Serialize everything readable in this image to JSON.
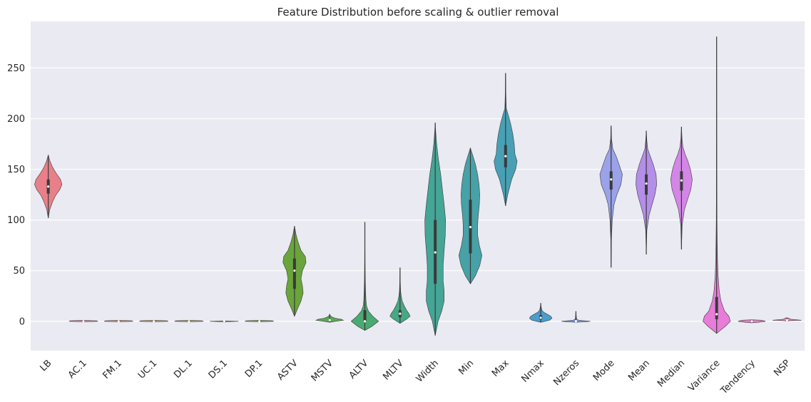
{
  "chart_data": {
    "type": "violin",
    "title": "Feature Distribution before scaling & outlier removal",
    "xlabel": "",
    "ylabel": "",
    "ylim": [
      -29,
      296
    ],
    "yticks": [
      0,
      50,
      100,
      150,
      200,
      250
    ],
    "grid": true,
    "legend": "none",
    "background": "#eaeaf2",
    "series": [
      {
        "name": "LB",
        "color": "#e88089",
        "min": 102,
        "max": 164,
        "q1": 126,
        "median": 133,
        "q3": 140,
        "shape": [
          [
            102,
            0
          ],
          [
            110,
            0.1
          ],
          [
            118,
            0.3
          ],
          [
            124,
            0.5
          ],
          [
            130,
            0.8
          ],
          [
            135,
            0.95
          ],
          [
            140,
            0.85
          ],
          [
            146,
            0.55
          ],
          [
            152,
            0.3
          ],
          [
            158,
            0.12
          ],
          [
            164,
            0
          ]
        ]
      },
      {
        "name": "AC.1",
        "color": "#e8849a",
        "min": -0.5,
        "max": 1,
        "q1": 0,
        "median": 0,
        "q3": 0.2,
        "shape": [
          [
            -0.5,
            0
          ],
          [
            0,
            1
          ],
          [
            0.5,
            0.9
          ],
          [
            1,
            0
          ]
        ]
      },
      {
        "name": "FM.1",
        "color": "#df9170",
        "min": -0.5,
        "max": 1,
        "q1": 0,
        "median": 0,
        "q3": 0.2,
        "shape": [
          [
            -0.5,
            0
          ],
          [
            0,
            1
          ],
          [
            0.5,
            0.9
          ],
          [
            1,
            0
          ]
        ]
      },
      {
        "name": "UC.1",
        "color": "#c99c5c",
        "min": -0.5,
        "max": 1,
        "q1": 0,
        "median": 0,
        "q3": 0.2,
        "shape": [
          [
            -0.5,
            0
          ],
          [
            0,
            1
          ],
          [
            0.5,
            0.9
          ],
          [
            1,
            0
          ]
        ]
      },
      {
        "name": "DL.1",
        "color": "#b3a457",
        "min": -0.5,
        "max": 1,
        "q1": 0,
        "median": 0,
        "q3": 0.2,
        "shape": [
          [
            -0.5,
            0
          ],
          [
            0,
            1
          ],
          [
            0.5,
            0.9
          ],
          [
            1,
            0
          ]
        ]
      },
      {
        "name": "DS.1",
        "color": "#98ac55",
        "min": -0.5,
        "max": 0.5,
        "q1": 0,
        "median": 0,
        "q3": 0.1,
        "shape": [
          [
            -0.5,
            0
          ],
          [
            0,
            1
          ],
          [
            0.5,
            0
          ]
        ]
      },
      {
        "name": "DP.1",
        "color": "#7db050",
        "min": -0.5,
        "max": 1,
        "q1": 0,
        "median": 0,
        "q3": 0.2,
        "shape": [
          [
            -0.5,
            0
          ],
          [
            0,
            1
          ],
          [
            0.5,
            0.9
          ],
          [
            1,
            0
          ]
        ]
      },
      {
        "name": "ASTV",
        "color": "#69a53b",
        "min": 5,
        "max": 94,
        "q1": 32,
        "median": 50,
        "q3": 62,
        "shape": [
          [
            5,
            0
          ],
          [
            12,
            0.2
          ],
          [
            20,
            0.45
          ],
          [
            28,
            0.6
          ],
          [
            35,
            0.55
          ],
          [
            42,
            0.45
          ],
          [
            50,
            0.55
          ],
          [
            58,
            0.8
          ],
          [
            64,
            0.75
          ],
          [
            70,
            0.45
          ],
          [
            78,
            0.25
          ],
          [
            86,
            0.1
          ],
          [
            94,
            0
          ]
        ]
      },
      {
        "name": "MSTV",
        "color": "#5ca858",
        "min": -1,
        "max": 7,
        "q1": 0.7,
        "median": 1.2,
        "q3": 1.7,
        "shape": [
          [
            -1,
            0
          ],
          [
            0,
            0.4
          ],
          [
            1,
            0.95
          ],
          [
            2,
            0.8
          ],
          [
            3,
            0.4
          ],
          [
            4,
            0.2
          ],
          [
            5,
            0.08
          ],
          [
            6,
            0.03
          ],
          [
            7,
            0
          ]
        ]
      },
      {
        "name": "ALTV",
        "color": "#4aaa72",
        "min": -9,
        "max": 98,
        "q1": 0,
        "median": 0,
        "q3": 11,
        "shape": [
          [
            -9,
            0
          ],
          [
            -5,
            0.5
          ],
          [
            0,
            0.95
          ],
          [
            5,
            0.55
          ],
          [
            10,
            0.25
          ],
          [
            15,
            0.12
          ],
          [
            20,
            0.08
          ],
          [
            30,
            0.05
          ],
          [
            40,
            0.03
          ],
          [
            60,
            0.015
          ],
          [
            80,
            0.008
          ],
          [
            98,
            0
          ]
        ]
      },
      {
        "name": "MLTV",
        "color": "#47a884",
        "min": -2,
        "max": 53,
        "q1": 4,
        "median": 7.5,
        "q3": 11,
        "shape": [
          [
            -2,
            0
          ],
          [
            2,
            0.45
          ],
          [
            5,
            0.7
          ],
          [
            8,
            0.6
          ],
          [
            11,
            0.45
          ],
          [
            15,
            0.3
          ],
          [
            20,
            0.15
          ],
          [
            25,
            0.08
          ],
          [
            30,
            0.04
          ],
          [
            40,
            0.015
          ],
          [
            53,
            0
          ]
        ]
      },
      {
        "name": "Width",
        "color": "#45a596",
        "min": -14,
        "max": 196,
        "q1": 37,
        "median": 68,
        "q3": 100,
        "shape": [
          [
            -14,
            0
          ],
          [
            0,
            0.2
          ],
          [
            10,
            0.45
          ],
          [
            20,
            0.62
          ],
          [
            30,
            0.62
          ],
          [
            40,
            0.55
          ],
          [
            55,
            0.55
          ],
          [
            70,
            0.62
          ],
          [
            85,
            0.7
          ],
          [
            100,
            0.72
          ],
          [
            115,
            0.62
          ],
          [
            130,
            0.5
          ],
          [
            145,
            0.38
          ],
          [
            160,
            0.22
          ],
          [
            175,
            0.1
          ],
          [
            186,
            0.04
          ],
          [
            196,
            0
          ]
        ]
      },
      {
        "name": "Min",
        "color": "#46a2a7",
        "min": 37,
        "max": 171,
        "q1": 67,
        "median": 93,
        "q3": 120,
        "shape": [
          [
            37,
            0
          ],
          [
            45,
            0.35
          ],
          [
            55,
            0.65
          ],
          [
            65,
            0.8
          ],
          [
            75,
            0.62
          ],
          [
            85,
            0.5
          ],
          [
            95,
            0.5
          ],
          [
            105,
            0.55
          ],
          [
            115,
            0.62
          ],
          [
            125,
            0.65
          ],
          [
            135,
            0.6
          ],
          [
            145,
            0.5
          ],
          [
            155,
            0.35
          ],
          [
            163,
            0.18
          ],
          [
            171,
            0
          ]
        ]
      },
      {
        "name": "Max",
        "color": "#48a0b5",
        "min": 114,
        "max": 245,
        "q1": 152,
        "median": 163,
        "q3": 174,
        "shape": [
          [
            114,
            0
          ],
          [
            125,
            0.15
          ],
          [
            140,
            0.42
          ],
          [
            150,
            0.7
          ],
          [
            158,
            0.8
          ],
          [
            165,
            0.65
          ],
          [
            175,
            0.6
          ],
          [
            185,
            0.5
          ],
          [
            195,
            0.35
          ],
          [
            203,
            0.2
          ],
          [
            210,
            0.05
          ],
          [
            225,
            0.02
          ],
          [
            245,
            0
          ]
        ]
      },
      {
        "name": "Nmax",
        "color": "#4a9dcc",
        "min": -1,
        "max": 18,
        "q1": 2,
        "median": 3.5,
        "q3": 6,
        "shape": [
          [
            -1,
            0
          ],
          [
            1,
            0.6
          ],
          [
            3,
            0.78
          ],
          [
            5,
            0.7
          ],
          [
            7,
            0.45
          ],
          [
            9,
            0.2
          ],
          [
            11,
            0.08
          ],
          [
            14,
            0.03
          ],
          [
            18,
            0
          ]
        ]
      },
      {
        "name": "Nzeros",
        "color": "#7b9ee6",
        "min": -1,
        "max": 10,
        "q1": 0,
        "median": 0,
        "q3": 0.3,
        "shape": [
          [
            -1,
            0
          ],
          [
            0,
            1
          ],
          [
            1,
            0.2
          ],
          [
            2,
            0.06
          ],
          [
            4,
            0.03
          ],
          [
            7,
            0.015
          ],
          [
            10,
            0
          ]
        ]
      },
      {
        "name": "Mode",
        "color": "#9aa2ea",
        "min": 53,
        "max": 193,
        "q1": 130,
        "median": 140,
        "q3": 148,
        "shape": [
          [
            53,
            0
          ],
          [
            80,
            0.02
          ],
          [
            100,
            0.08
          ],
          [
            115,
            0.2
          ],
          [
            125,
            0.4
          ],
          [
            135,
            0.68
          ],
          [
            145,
            0.78
          ],
          [
            155,
            0.55
          ],
          [
            163,
            0.35
          ],
          [
            170,
            0.12
          ],
          [
            180,
            0.03
          ],
          [
            193,
            0
          ]
        ]
      },
      {
        "name": "Mean",
        "color": "#b48ee9",
        "min": 66,
        "max": 188,
        "q1": 125,
        "median": 136,
        "q3": 145,
        "shape": [
          [
            66,
            0
          ],
          [
            90,
            0.04
          ],
          [
            105,
            0.2
          ],
          [
            115,
            0.4
          ],
          [
            125,
            0.6
          ],
          [
            135,
            0.72
          ],
          [
            145,
            0.68
          ],
          [
            155,
            0.48
          ],
          [
            162,
            0.3
          ],
          [
            170,
            0.1
          ],
          [
            178,
            0.04
          ],
          [
            188,
            0
          ]
        ]
      },
      {
        "name": "Median",
        "color": "#d386e6",
        "min": 71,
        "max": 192,
        "q1": 129,
        "median": 139,
        "q3": 148,
        "shape": [
          [
            71,
            0
          ],
          [
            95,
            0.05
          ],
          [
            110,
            0.2
          ],
          [
            120,
            0.42
          ],
          [
            130,
            0.65
          ],
          [
            140,
            0.75
          ],
          [
            150,
            0.62
          ],
          [
            158,
            0.45
          ],
          [
            165,
            0.25
          ],
          [
            172,
            0.1
          ],
          [
            180,
            0.04
          ],
          [
            192,
            0
          ]
        ]
      },
      {
        "name": "Variance",
        "color": "#e77cd9",
        "min": -12,
        "max": 281,
        "q1": 2,
        "median": 7,
        "q3": 24,
        "shape": [
          [
            -12,
            0
          ],
          [
            -5,
            0.6
          ],
          [
            0,
            0.95
          ],
          [
            5,
            0.85
          ],
          [
            10,
            0.55
          ],
          [
            20,
            0.3
          ],
          [
            30,
            0.18
          ],
          [
            45,
            0.1
          ],
          [
            60,
            0.06
          ],
          [
            80,
            0.04
          ],
          [
            100,
            0.025
          ],
          [
            150,
            0.012
          ],
          [
            200,
            0.006
          ],
          [
            281,
            0
          ]
        ]
      },
      {
        "name": "Tendency",
        "color": "#e682c4",
        "min": -1.5,
        "max": 1.5,
        "q1": 0,
        "median": 0,
        "q3": 1,
        "shape": [
          [
            -1.5,
            0
          ],
          [
            -1,
            0.45
          ],
          [
            0,
            0.95
          ],
          [
            1,
            0.7
          ],
          [
            1.5,
            0
          ]
        ]
      },
      {
        "name": "NSP",
        "color": "#e887a9",
        "min": 0.5,
        "max": 3.5,
        "q1": 1,
        "median": 1,
        "q3": 1,
        "shape": [
          [
            0.5,
            0
          ],
          [
            1,
            1
          ],
          [
            2,
            0.25
          ],
          [
            3,
            0.15
          ],
          [
            3.5,
            0
          ]
        ]
      }
    ]
  }
}
